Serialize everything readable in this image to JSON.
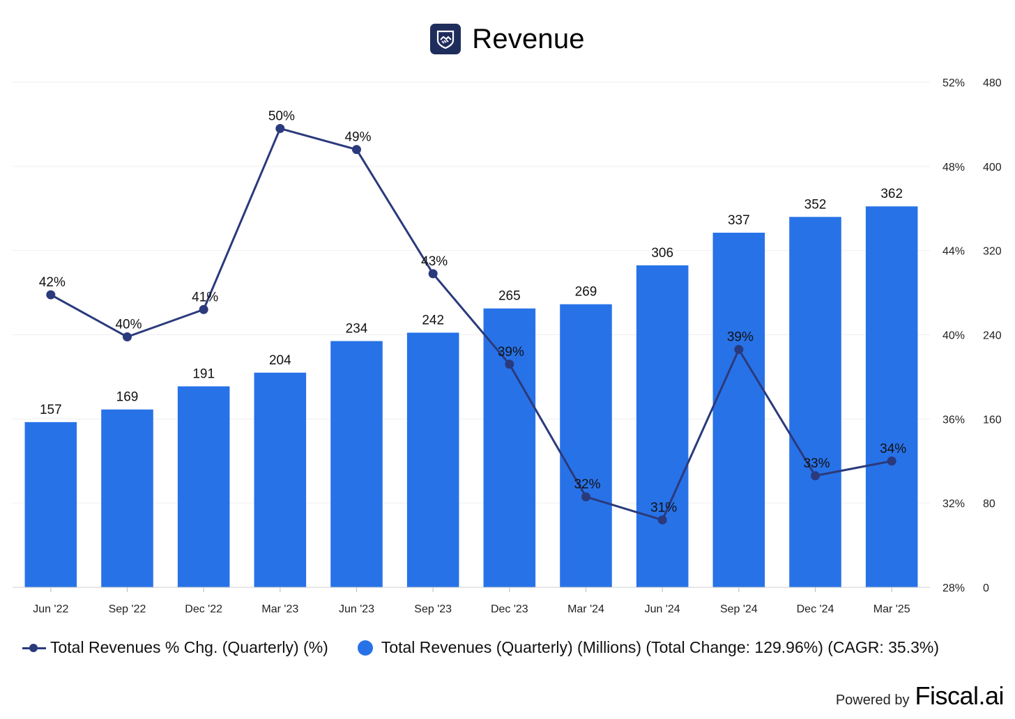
{
  "header": {
    "title": "Revenue",
    "logo_icon": "handshake-shield-icon"
  },
  "chart_data": {
    "type": "bar",
    "title": "Revenue",
    "categories": [
      "Jun '22",
      "Sep '22",
      "Dec '22",
      "Mar '23",
      "Jun '23",
      "Sep '23",
      "Dec '23",
      "Mar '24",
      "Jun '24",
      "Sep '24",
      "Dec '24",
      "Mar '25"
    ],
    "series": [
      {
        "name": "Total Revenues (Quarterly) (Millions) (Total Change: 129.96%) (CAGR: 35.3%)",
        "type": "bar",
        "axis": "right-outer",
        "values": [
          157,
          169,
          191,
          204,
          234,
          242,
          265,
          269,
          306,
          337,
          352,
          362
        ],
        "labels": [
          "157",
          "169",
          "191",
          "204",
          "234",
          "242",
          "265",
          "269",
          "306",
          "337",
          "352",
          "362"
        ],
        "color": "#2872e8"
      },
      {
        "name": "Total Revenues % Chg. (Quarterly) (%)",
        "type": "line",
        "axis": "right-inner",
        "values": [
          41.9,
          39.9,
          41.2,
          49.8,
          48.8,
          42.9,
          38.6,
          32.3,
          31.2,
          39.3,
          33.3,
          34.0
        ],
        "labels": [
          "42%",
          "40%",
          "41%",
          "50%",
          "49%",
          "43%",
          "39%",
          "32%",
          "31%",
          "39%",
          "33%",
          "34%"
        ],
        "color": "#2a3a7c"
      }
    ],
    "y_left_axis": {
      "range": [
        28,
        52
      ],
      "ticks": [
        28,
        32,
        36,
        40,
        44,
        48,
        52
      ],
      "tick_labels": [
        "28%",
        "32%",
        "36%",
        "40%",
        "44%",
        "48%",
        "52%"
      ]
    },
    "y_right_axis": {
      "range": [
        0,
        480
      ],
      "ticks": [
        0,
        80,
        160,
        240,
        320,
        400,
        480
      ],
      "tick_labels": [
        "0",
        "80",
        "160",
        "240",
        "320",
        "400",
        "480"
      ]
    },
    "grid": true,
    "legend": "bottom-left"
  },
  "legend": {
    "line_label": "Total Revenues % Chg. (Quarterly) (%)",
    "bar_label": "Total Revenues (Quarterly) (Millions) (Total Change: 129.96%) (CAGR: 35.3%)"
  },
  "footer": {
    "powered_label": "Powered by",
    "brand": "Fiscal.ai"
  }
}
